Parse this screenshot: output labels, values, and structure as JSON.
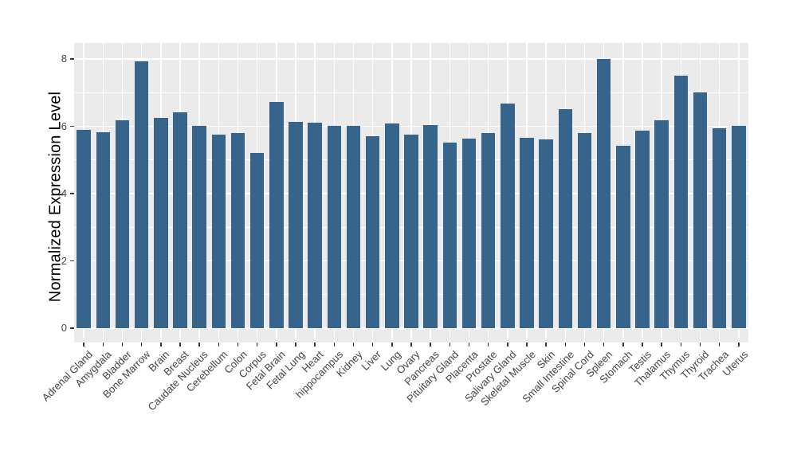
{
  "chart_data": {
    "type": "bar",
    "title": "",
    "xlabel": "",
    "ylabel": "Normalized Expression Level",
    "ylim": [
      0,
      8.4
    ],
    "yticks": [
      0,
      2,
      4,
      6,
      8
    ],
    "yticks_minor": [
      1,
      3,
      5,
      7
    ],
    "grid": true,
    "legend": "none",
    "categories": [
      "Adrenal Gland",
      "Amygdala",
      "Bladder",
      "Bone Marrow",
      "Brain",
      "Breast",
      "Caudate Nucleus",
      "Cerebellum",
      "Colon",
      "Corpus",
      "Fetal Brain",
      "Fetal Lung",
      "Heart",
      "hippocampus",
      "Kidney",
      "Liver",
      "Lung",
      "Ovary",
      "Pancreas",
      "Pituitary Gland",
      "Placenta",
      "Prostate",
      "Salivary Gland",
      "Skeletal Muscle",
      "Skin",
      "Small Intestine",
      "Spinal Cord",
      "Spleen",
      "Stomach",
      "Testis",
      "Thalamus",
      "Thymus",
      "Thyroid",
      "Trachea",
      "Uterus"
    ],
    "values": [
      5.9,
      5.83,
      6.18,
      7.93,
      6.26,
      6.42,
      6.01,
      5.74,
      5.79,
      5.2,
      6.72,
      6.14,
      6.1,
      6.02,
      6.01,
      5.7,
      6.08,
      5.76,
      6.03,
      5.52,
      5.64,
      5.8,
      6.68,
      5.65,
      5.62,
      6.5,
      5.8,
      8.0,
      5.42,
      5.88,
      6.18,
      7.51,
      7.0,
      5.95,
      6.01
    ],
    "colors": {
      "bar_fill": "#36648B",
      "panel_bg": "#EBEBEB",
      "grid": "#FFFFFF",
      "axis_text": "#444444",
      "axis_title": "#000000",
      "tick": "#333333",
      "page_bg": "#FFFFFF"
    }
  }
}
